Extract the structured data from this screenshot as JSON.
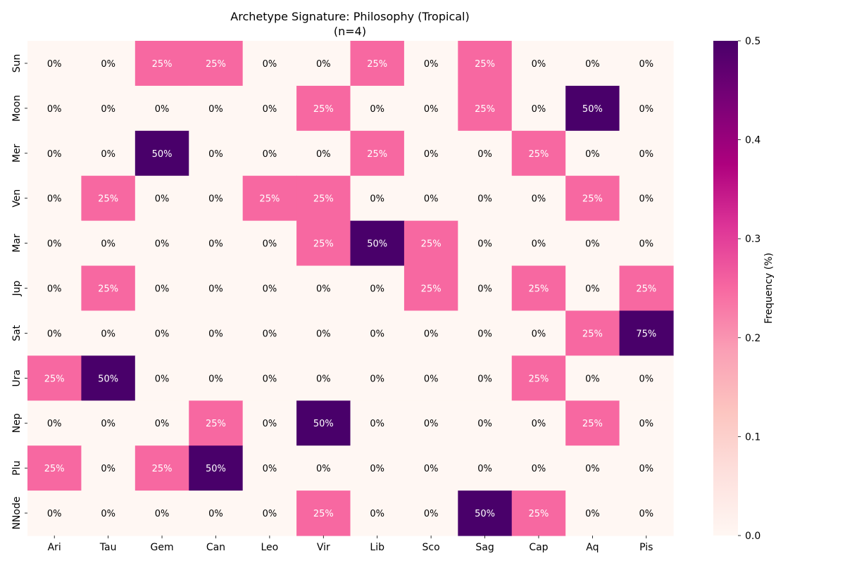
{
  "chart_data": {
    "type": "heatmap",
    "title": "Archetype Signature: Philosophy (Tropical)",
    "subtitle": "(n=4)",
    "xlabel": "",
    "ylabel": "",
    "x_categories": [
      "Ari",
      "Tau",
      "Gem",
      "Can",
      "Leo",
      "Vir",
      "Lib",
      "Sco",
      "Sag",
      "Cap",
      "Aq",
      "Pis"
    ],
    "y_categories": [
      "Sun",
      "Moon",
      "Mer",
      "Ven",
      "Mar",
      "Jup",
      "Sat",
      "Ura",
      "Nep",
      "Plu",
      "NNode"
    ],
    "values": [
      [
        0,
        0,
        0.25,
        0.25,
        0,
        0,
        0.25,
        0,
        0.25,
        0,
        0,
        0
      ],
      [
        0,
        0,
        0,
        0,
        0,
        0.25,
        0,
        0,
        0.25,
        0,
        0.5,
        0
      ],
      [
        0,
        0,
        0.5,
        0,
        0,
        0,
        0.25,
        0,
        0,
        0.25,
        0,
        0
      ],
      [
        0,
        0.25,
        0,
        0,
        0.25,
        0.25,
        0,
        0,
        0,
        0,
        0.25,
        0
      ],
      [
        0,
        0,
        0,
        0,
        0,
        0.25,
        0.5,
        0.25,
        0,
        0,
        0,
        0
      ],
      [
        0,
        0.25,
        0,
        0,
        0,
        0,
        0,
        0.25,
        0,
        0.25,
        0,
        0.25
      ],
      [
        0,
        0,
        0,
        0,
        0,
        0,
        0,
        0,
        0,
        0,
        0.25,
        0.75
      ],
      [
        0.25,
        0.5,
        0,
        0,
        0,
        0,
        0,
        0,
        0,
        0.25,
        0,
        0
      ],
      [
        0,
        0,
        0,
        0.25,
        0,
        0.5,
        0,
        0,
        0,
        0,
        0.25,
        0
      ],
      [
        0.25,
        0,
        0.25,
        0.5,
        0,
        0,
        0,
        0,
        0,
        0,
        0,
        0
      ],
      [
        0,
        0,
        0,
        0,
        0,
        0.25,
        0,
        0,
        0.5,
        0.25,
        0,
        0
      ]
    ],
    "cell_labels": [
      [
        "0%",
        "0%",
        "25%",
        "25%",
        "0%",
        "0%",
        "25%",
        "0%",
        "25%",
        "0%",
        "0%",
        "0%"
      ],
      [
        "0%",
        "0%",
        "0%",
        "0%",
        "0%",
        "25%",
        "0%",
        "0%",
        "25%",
        "0%",
        "50%",
        "0%"
      ],
      [
        "0%",
        "0%",
        "50%",
        "0%",
        "0%",
        "0%",
        "25%",
        "0%",
        "0%",
        "25%",
        "0%",
        "0%"
      ],
      [
        "0%",
        "25%",
        "0%",
        "0%",
        "25%",
        "25%",
        "0%",
        "0%",
        "0%",
        "0%",
        "25%",
        "0%"
      ],
      [
        "0%",
        "0%",
        "0%",
        "0%",
        "0%",
        "25%",
        "50%",
        "25%",
        "0%",
        "0%",
        "0%",
        "0%"
      ],
      [
        "0%",
        "25%",
        "0%",
        "0%",
        "0%",
        "0%",
        "0%",
        "25%",
        "0%",
        "25%",
        "0%",
        "25%"
      ],
      [
        "0%",
        "0%",
        "0%",
        "0%",
        "0%",
        "0%",
        "0%",
        "0%",
        "0%",
        "0%",
        "25%",
        "75%"
      ],
      [
        "25%",
        "50%",
        "0%",
        "0%",
        "0%",
        "0%",
        "0%",
        "0%",
        "0%",
        "25%",
        "0%",
        "0%"
      ],
      [
        "0%",
        "0%",
        "0%",
        "25%",
        "0%",
        "50%",
        "0%",
        "0%",
        "0%",
        "0%",
        "25%",
        "0%"
      ],
      [
        "25%",
        "0%",
        "25%",
        "50%",
        "0%",
        "0%",
        "0%",
        "0%",
        "0%",
        "0%",
        "0%",
        "0%"
      ],
      [
        "0%",
        "0%",
        "0%",
        "0%",
        "0%",
        "25%",
        "0%",
        "0%",
        "50%",
        "25%",
        "0%",
        "0%"
      ]
    ],
    "colorbar": {
      "label": "Frequency (%)",
      "vmin": 0,
      "vmax": 0.5,
      "ticks": [
        0.0,
        0.1,
        0.2,
        0.3,
        0.4,
        0.5
      ],
      "tick_labels": [
        "0.0",
        "0.1",
        "0.2",
        "0.3",
        "0.4",
        "0.5"
      ],
      "colormap": "RdPu",
      "stops": [
        "#fff7f3",
        "#fde0dd",
        "#fcc5c0",
        "#fa9fb5",
        "#f768a1",
        "#dd3497",
        "#ae017e",
        "#7a0177",
        "#49006a"
      ]
    },
    "text_colors": {
      "light": "#ffffff",
      "dark": "#000000"
    }
  }
}
